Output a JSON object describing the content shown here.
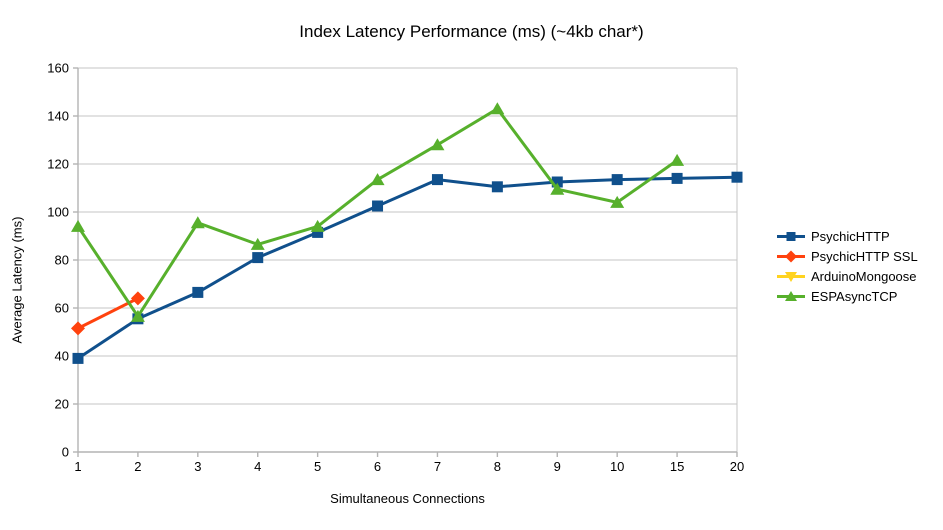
{
  "chart_data": {
    "type": "line",
    "title": "Index Latency Performance (ms) (~4kb char*)",
    "xlabel": "Simultaneous Connections",
    "ylabel": "Average Latency (ms)",
    "categories": [
      "1",
      "2",
      "3",
      "4",
      "5",
      "6",
      "7",
      "8",
      "9",
      "10",
      "15",
      "20"
    ],
    "ylim": [
      0,
      160
    ],
    "yticks": [
      0,
      20,
      40,
      60,
      80,
      100,
      120,
      140,
      160
    ],
    "grid": "horizontal",
    "legend_position": "right",
    "axis_color": "#b3b3b3",
    "grid_color": "#c6c6c6",
    "text_color": "#000000",
    "series": [
      {
        "name": "PsychicHTTP",
        "color": "#10508c",
        "marker": "square",
        "values": [
          39,
          55.5,
          66.5,
          81,
          91.5,
          102.5,
          113.5,
          110.5,
          112.5,
          113.5,
          114,
          114.5
        ]
      },
      {
        "name": "PsychicHTTP SSL",
        "color": "#ff420e",
        "marker": "diamond",
        "values": [
          51.5,
          64,
          null,
          null,
          null,
          null,
          null,
          null,
          null,
          null,
          null,
          null
        ]
      },
      {
        "name": "ArduinoMongoose",
        "color": "#ffd320",
        "marker": "triangle-down",
        "values": [
          null,
          null,
          null,
          null,
          null,
          null,
          null,
          null,
          null,
          null,
          null,
          null
        ]
      },
      {
        "name": "ESPAsyncTCP",
        "color": "#57b02c",
        "marker": "triangle-up",
        "values": [
          94,
          56.5,
          95.5,
          86.5,
          94,
          113.5,
          128,
          143,
          109.5,
          104,
          121.5,
          null
        ]
      }
    ]
  }
}
